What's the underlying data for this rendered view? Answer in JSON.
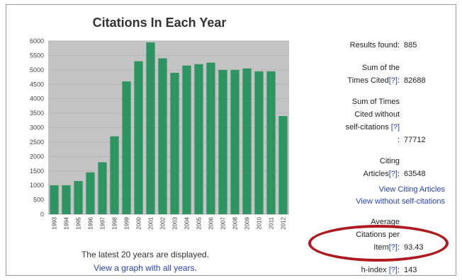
{
  "chart_data": {
    "type": "bar",
    "title": "Citations In Each Year",
    "categories": [
      "1993",
      "1994",
      "1995",
      "1996",
      "1997",
      "1998",
      "1999",
      "2000",
      "2001",
      "2002",
      "2003",
      "2004",
      "2005",
      "2006",
      "2007",
      "2008",
      "2009",
      "2010",
      "2011",
      "2012"
    ],
    "values": [
      1000,
      1000,
      1150,
      1450,
      1800,
      2700,
      4600,
      5300,
      5950,
      5400,
      4900,
      5150,
      5200,
      5250,
      5000,
      5000,
      5050,
      4950,
      4950,
      3400
    ],
    "ylim": [
      0,
      6000
    ],
    "yticks": [
      "0",
      "500",
      "1000",
      "1500",
      "2000",
      "2500",
      "3000",
      "3500",
      "4000",
      "4500",
      "5000",
      "5500",
      "6000"
    ],
    "bar_color": "#2e9461",
    "plot_bg": "#c4c4c4",
    "grid": true,
    "notes": [
      "The latest 20 years are displayed.",
      "View a graph with all years."
    ]
  },
  "stats": {
    "results_found_label": "Results found:",
    "results_found_value": "885",
    "sum_cited_label_1": "Sum of the",
    "sum_cited_label_2": "Times Cited",
    "sum_cited_value": "82688",
    "sum_cited_wo_label_1": "Sum of Times",
    "sum_cited_wo_label_2": "Cited without",
    "sum_cited_wo_label_3": "self-citations",
    "sum_cited_wo_value": "77712",
    "citing_label_1": "Citing",
    "citing_label_2": "Articles",
    "citing_value": "63548",
    "view_citing": "View Citing Articles",
    "view_without_self": "View without self-citations",
    "avg_label_1": "Average",
    "avg_label_2": "Citations per",
    "avg_label_3": "Item",
    "avg_value": "93.43",
    "hindex_label": "h-index",
    "hindex_value": "143",
    "help_mark": "[?]"
  },
  "colors": {
    "highlight_oval": "#b0191f",
    "link": "#2b41c8"
  }
}
